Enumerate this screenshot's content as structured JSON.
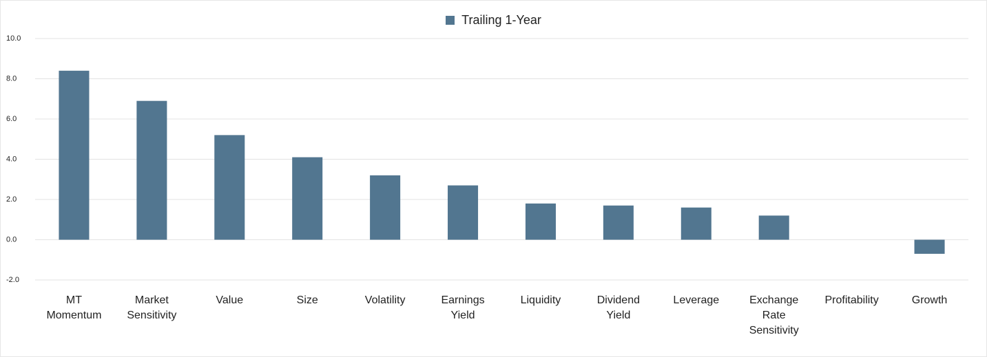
{
  "chart_data": {
    "type": "bar",
    "categories": [
      "MT Momentum",
      "Market Sensitivity",
      "Value",
      "Size",
      "Volatility",
      "Earnings Yield",
      "Liquidity",
      "Dividend Yield",
      "Leverage",
      "Exchange Rate Sensitivity",
      "Profitability",
      "Growth"
    ],
    "series": [
      {
        "name": "Trailing 1-Year",
        "color": "#527690",
        "values": [
          8.4,
          6.9,
          5.2,
          4.1,
          3.2,
          2.7,
          1.8,
          1.7,
          1.6,
          1.2,
          0.0,
          -0.7
        ]
      }
    ],
    "ylim": [
      -2,
      10
    ],
    "yticks": [
      {
        "value": -2,
        "label": "-2.0"
      },
      {
        "value": 0,
        "label": "0.0"
      },
      {
        "value": 2,
        "label": "2.0"
      },
      {
        "value": 4,
        "label": "4.0"
      },
      {
        "value": 6,
        "label": "6.0"
      },
      {
        "value": 8,
        "label": "8.0"
      },
      {
        "value": 10,
        "label": "10.0"
      }
    ],
    "grid": true,
    "legend": "top"
  }
}
